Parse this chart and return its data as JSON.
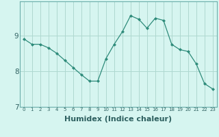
{
  "x": [
    0,
    1,
    2,
    3,
    4,
    5,
    6,
    7,
    8,
    9,
    10,
    11,
    12,
    13,
    14,
    15,
    16,
    17,
    18,
    19,
    20,
    21,
    22,
    23
  ],
  "y": [
    8.9,
    8.75,
    8.75,
    8.65,
    8.5,
    8.3,
    8.1,
    7.9,
    7.72,
    7.72,
    8.35,
    8.75,
    9.1,
    9.55,
    9.45,
    9.2,
    9.48,
    9.42,
    8.75,
    8.6,
    8.55,
    8.2,
    7.65,
    7.5
  ],
  "line_color": "#2e8b7a",
  "marker": "D",
  "marker_size": 2.0,
  "bg_color": "#d6f5f0",
  "grid_color": "#aed8d0",
  "xlabel": "Humidex (Indice chaleur)",
  "xlabel_fontsize": 8,
  "xlim": [
    -0.5,
    23.5
  ],
  "ylim": [
    7.0,
    9.95
  ],
  "yticks": [
    7,
    8,
    9
  ],
  "xtick_labels": [
    "0",
    "1",
    "2",
    "3",
    "4",
    "5",
    "6",
    "7",
    "8",
    "9",
    "10",
    "11",
    "12",
    "13",
    "14",
    "15",
    "16",
    "17",
    "18",
    "19",
    "20",
    "21",
    "22",
    "23"
  ],
  "figsize": [
    3.2,
    2.0
  ],
  "dpi": 100
}
